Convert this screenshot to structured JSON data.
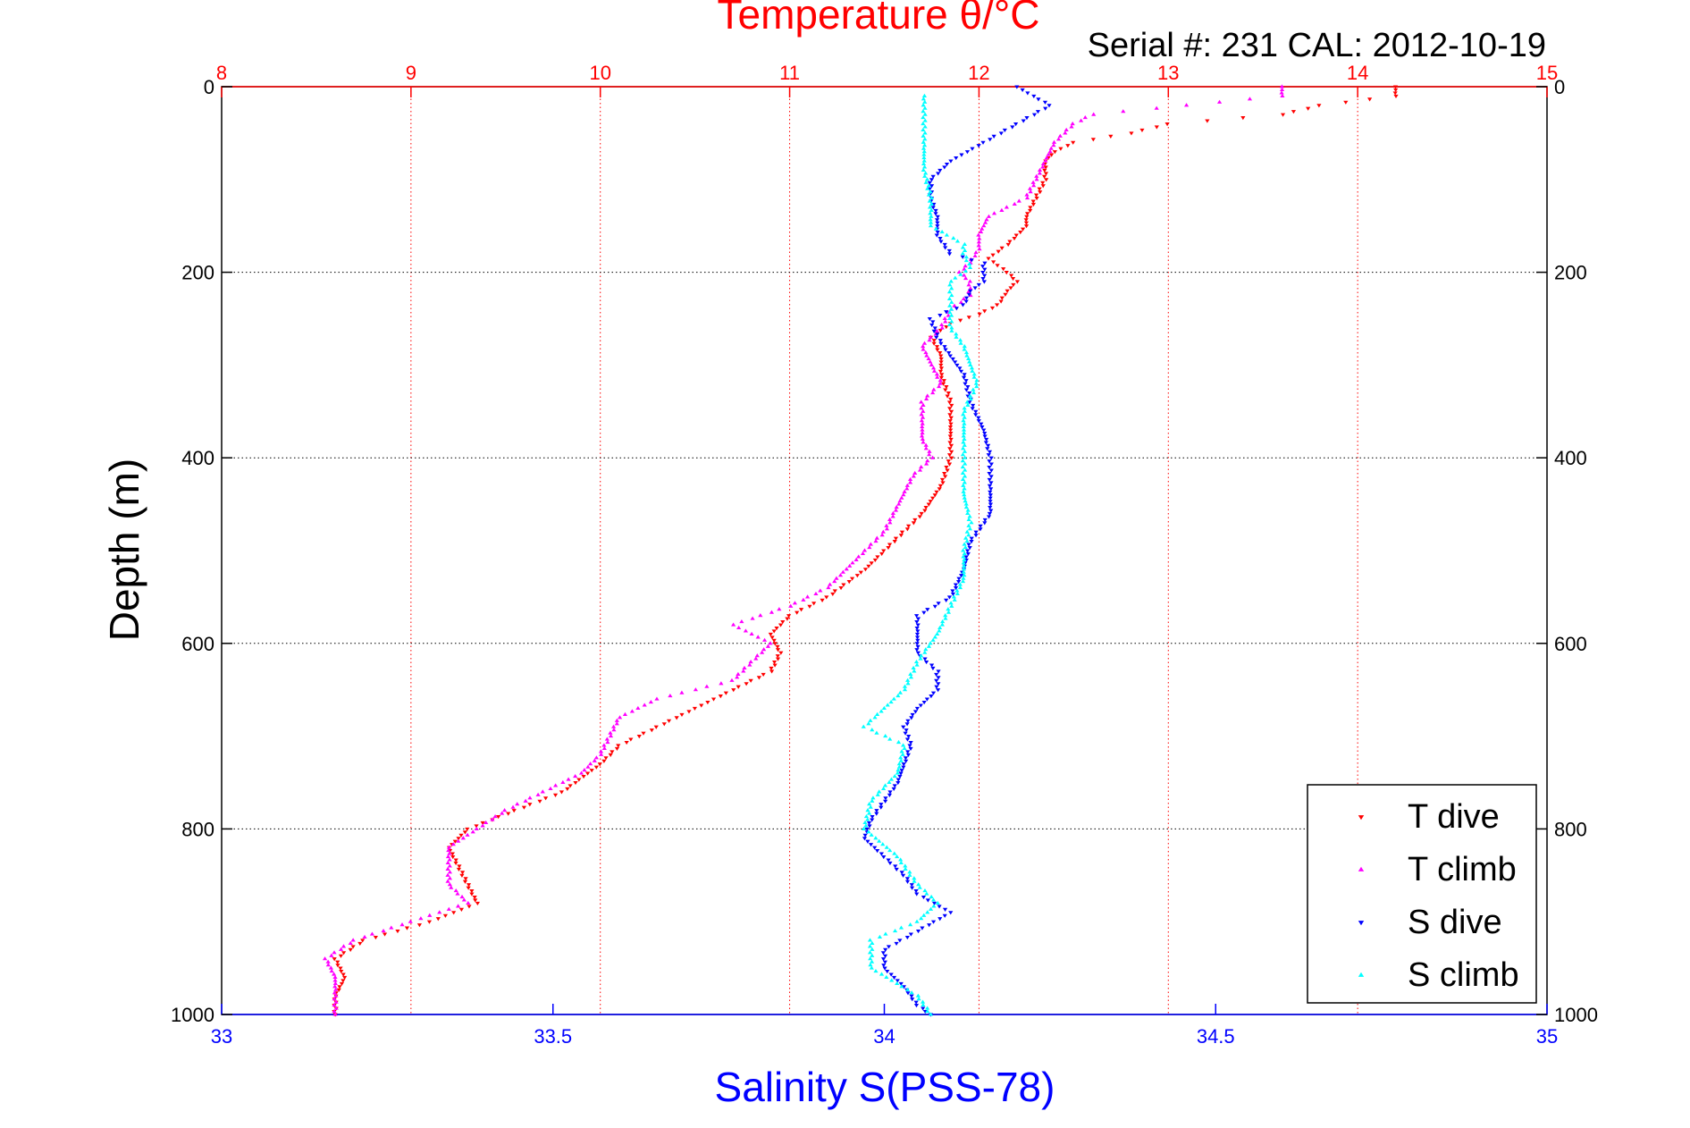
{
  "chart_data": {
    "type": "scatter",
    "title": "Temperature θ/°C",
    "subtitle": "Serial #: 231   CAL: 2012-10-19",
    "top_xlabel": "Temperature θ/°C",
    "bottom_xlabel": "Salinity S(PSS-78)",
    "ylabel": "Depth (m)",
    "temperature_axis": {
      "lim": [
        8,
        15
      ],
      "ticks": [
        "8",
        "9",
        "10",
        "11",
        "12",
        "13",
        "14",
        "15"
      ],
      "color": "#ff0000"
    },
    "salinity_axis": {
      "lim": [
        33,
        35
      ],
      "ticks": [
        "33",
        "33.5",
        "34",
        "34.5",
        "35"
      ],
      "color": "#0000ff"
    },
    "depth_axis": {
      "lim": [
        0,
        1000
      ],
      "reversed": true,
      "ticks": [
        "0",
        "200",
        "400",
        "600",
        "800",
        "1000"
      ]
    },
    "grid": true,
    "legend_position": "bottom-right",
    "series": [
      {
        "name": "T dive",
        "axis": "temperature",
        "marker": "triangle-down",
        "color": "#ff0000",
        "depth": [
          0,
          10,
          20,
          30,
          40,
          50,
          60,
          70,
          80,
          100,
          120,
          140,
          150,
          170,
          185,
          200,
          210,
          220,
          235,
          245,
          255,
          270,
          290,
          310,
          340,
          370,
          400,
          430,
          460,
          480,
          500,
          520,
          550,
          570,
          590,
          610,
          630,
          650,
          670,
          690,
          710,
          730,
          760,
          780,
          800,
          820,
          840,
          860,
          880,
          900,
          920,
          940,
          960,
          980,
          1000
        ],
        "values": [
          14.2,
          14.2,
          13.8,
          13.6,
          13.0,
          12.8,
          12.5,
          12.4,
          12.35,
          12.35,
          12.3,
          12.25,
          12.25,
          12.15,
          12.05,
          12.15,
          12.2,
          12.15,
          12.1,
          12.0,
          11.85,
          11.75,
          11.8,
          11.8,
          11.85,
          11.85,
          11.85,
          11.8,
          11.7,
          11.6,
          11.5,
          11.4,
          11.2,
          11.0,
          10.9,
          10.95,
          10.9,
          10.7,
          10.5,
          10.3,
          10.1,
          10.0,
          9.8,
          9.55,
          9.3,
          9.2,
          9.25,
          9.3,
          9.35,
          9.1,
          8.75,
          8.6,
          8.65,
          8.6,
          8.6
        ]
      },
      {
        "name": "T climb",
        "axis": "temperature",
        "marker": "triangle-up",
        "color": "#ff00ff",
        "depth": [
          0,
          10,
          20,
          30,
          40,
          60,
          80,
          100,
          120,
          140,
          160,
          175,
          190,
          200,
          210,
          225,
          240,
          260,
          280,
          300,
          320,
          340,
          360,
          380,
          400,
          420,
          440,
          460,
          480,
          500,
          520,
          540,
          560,
          580,
          600,
          620,
          640,
          660,
          680,
          700,
          720,
          740,
          760,
          780,
          800,
          820,
          840,
          860,
          880,
          900,
          920,
          940,
          960,
          980,
          1000
        ],
        "values": [
          13.6,
          13.6,
          13.1,
          12.6,
          12.5,
          12.4,
          12.35,
          12.3,
          12.25,
          12.05,
          12.0,
          12.0,
          11.95,
          11.9,
          11.95,
          11.95,
          11.85,
          11.8,
          11.7,
          11.75,
          11.8,
          11.7,
          11.7,
          11.7,
          11.75,
          11.65,
          11.6,
          11.55,
          11.5,
          11.4,
          11.3,
          11.2,
          11.0,
          10.7,
          10.9,
          10.8,
          10.7,
          10.3,
          10.1,
          10.05,
          10.0,
          9.9,
          9.7,
          9.5,
          9.35,
          9.2,
          9.2,
          9.2,
          9.3,
          9.0,
          8.7,
          8.55,
          8.6,
          8.6,
          8.6
        ]
      },
      {
        "name": "S dive",
        "axis": "salinity",
        "marker": "triangle-down",
        "color": "#0000ff",
        "depth": [
          0,
          20,
          40,
          60,
          80,
          100,
          120,
          140,
          160,
          180,
          190,
          200,
          210,
          220,
          235,
          250,
          270,
          290,
          310,
          340,
          370,
          400,
          430,
          460,
          490,
          520,
          550,
          570,
          590,
          610,
          630,
          650,
          670,
          690,
          710,
          730,
          750,
          770,
          790,
          810,
          830,
          850,
          870,
          890,
          910,
          930,
          950,
          970,
          990,
          1000
        ],
        "values": [
          34.2,
          34.25,
          34.2,
          34.15,
          34.1,
          34.07,
          34.07,
          34.08,
          34.08,
          34.1,
          34.15,
          34.15,
          34.15,
          34.13,
          34.12,
          34.07,
          34.08,
          34.1,
          34.12,
          34.13,
          34.15,
          34.16,
          34.16,
          34.16,
          34.13,
          34.12,
          34.1,
          34.05,
          34.05,
          34.05,
          34.08,
          34.08,
          34.05,
          34.03,
          34.04,
          34.03,
          34.02,
          34.0,
          33.98,
          33.97,
          34.0,
          34.03,
          34.05,
          34.1,
          34.05,
          34.0,
          34.0,
          34.03,
          34.05,
          34.07
        ]
      },
      {
        "name": "S climb",
        "axis": "salinity",
        "marker": "triangle-up",
        "color": "#00ffff",
        "depth": [
          10,
          30,
          60,
          90,
          120,
          150,
          170,
          180,
          195,
          210,
          225,
          240,
          260,
          280,
          300,
          320,
          350,
          380,
          410,
          440,
          470,
          500,
          530,
          560,
          590,
          620,
          650,
          670,
          690,
          710,
          740,
          770,
          800,
          830,
          860,
          880,
          900,
          920,
          950,
          980,
          1000
        ],
        "values": [
          34.06,
          34.06,
          34.06,
          34.06,
          34.07,
          34.07,
          34.12,
          34.12,
          34.13,
          34.1,
          34.1,
          34.1,
          34.1,
          34.12,
          34.13,
          34.14,
          34.12,
          34.12,
          34.12,
          34.12,
          34.13,
          34.12,
          34.12,
          34.1,
          34.08,
          34.05,
          34.03,
          34.0,
          33.97,
          34.03,
          34.02,
          33.98,
          33.97,
          34.02,
          34.05,
          34.08,
          34.05,
          33.98,
          33.98,
          34.05,
          34.07
        ]
      }
    ]
  }
}
